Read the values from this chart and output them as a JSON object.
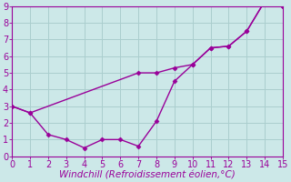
{
  "line1_x": [
    0,
    1,
    7,
    8,
    9,
    10,
    11,
    12,
    13,
    14,
    15
  ],
  "line1_y": [
    3.0,
    2.6,
    5.0,
    5.0,
    5.3,
    5.5,
    6.5,
    6.6,
    7.5,
    9.3,
    9.0
  ],
  "line2_x": [
    0,
    1,
    2,
    3,
    4,
    5,
    6,
    7,
    8,
    9,
    10,
    11,
    12,
    13,
    14,
    15
  ],
  "line2_y": [
    3.0,
    2.6,
    1.3,
    1.0,
    0.5,
    1.0,
    1.0,
    0.6,
    2.1,
    4.5,
    5.5,
    6.5,
    6.6,
    7.5,
    9.3,
    9.0
  ],
  "line_color": "#990099",
  "bg_color": "#cce8e8",
  "grid_color": "#aacece",
  "xlabel": "Windchill (Refroidissement éolien,°C)",
  "xlim": [
    0,
    15
  ],
  "ylim": [
    0,
    9
  ],
  "xticks": [
    0,
    1,
    2,
    3,
    4,
    5,
    6,
    7,
    8,
    9,
    10,
    11,
    12,
    13,
    14,
    15
  ],
  "yticks": [
    0,
    1,
    2,
    3,
    4,
    5,
    6,
    7,
    8,
    9
  ],
  "marker": "D",
  "markersize": 2.5,
  "linewidth": 1.0,
  "xlabel_fontsize": 7.5,
  "tick_fontsize": 7,
  "xlabel_color": "#990099",
  "tick_color": "#990099",
  "spine_color": "#990099"
}
